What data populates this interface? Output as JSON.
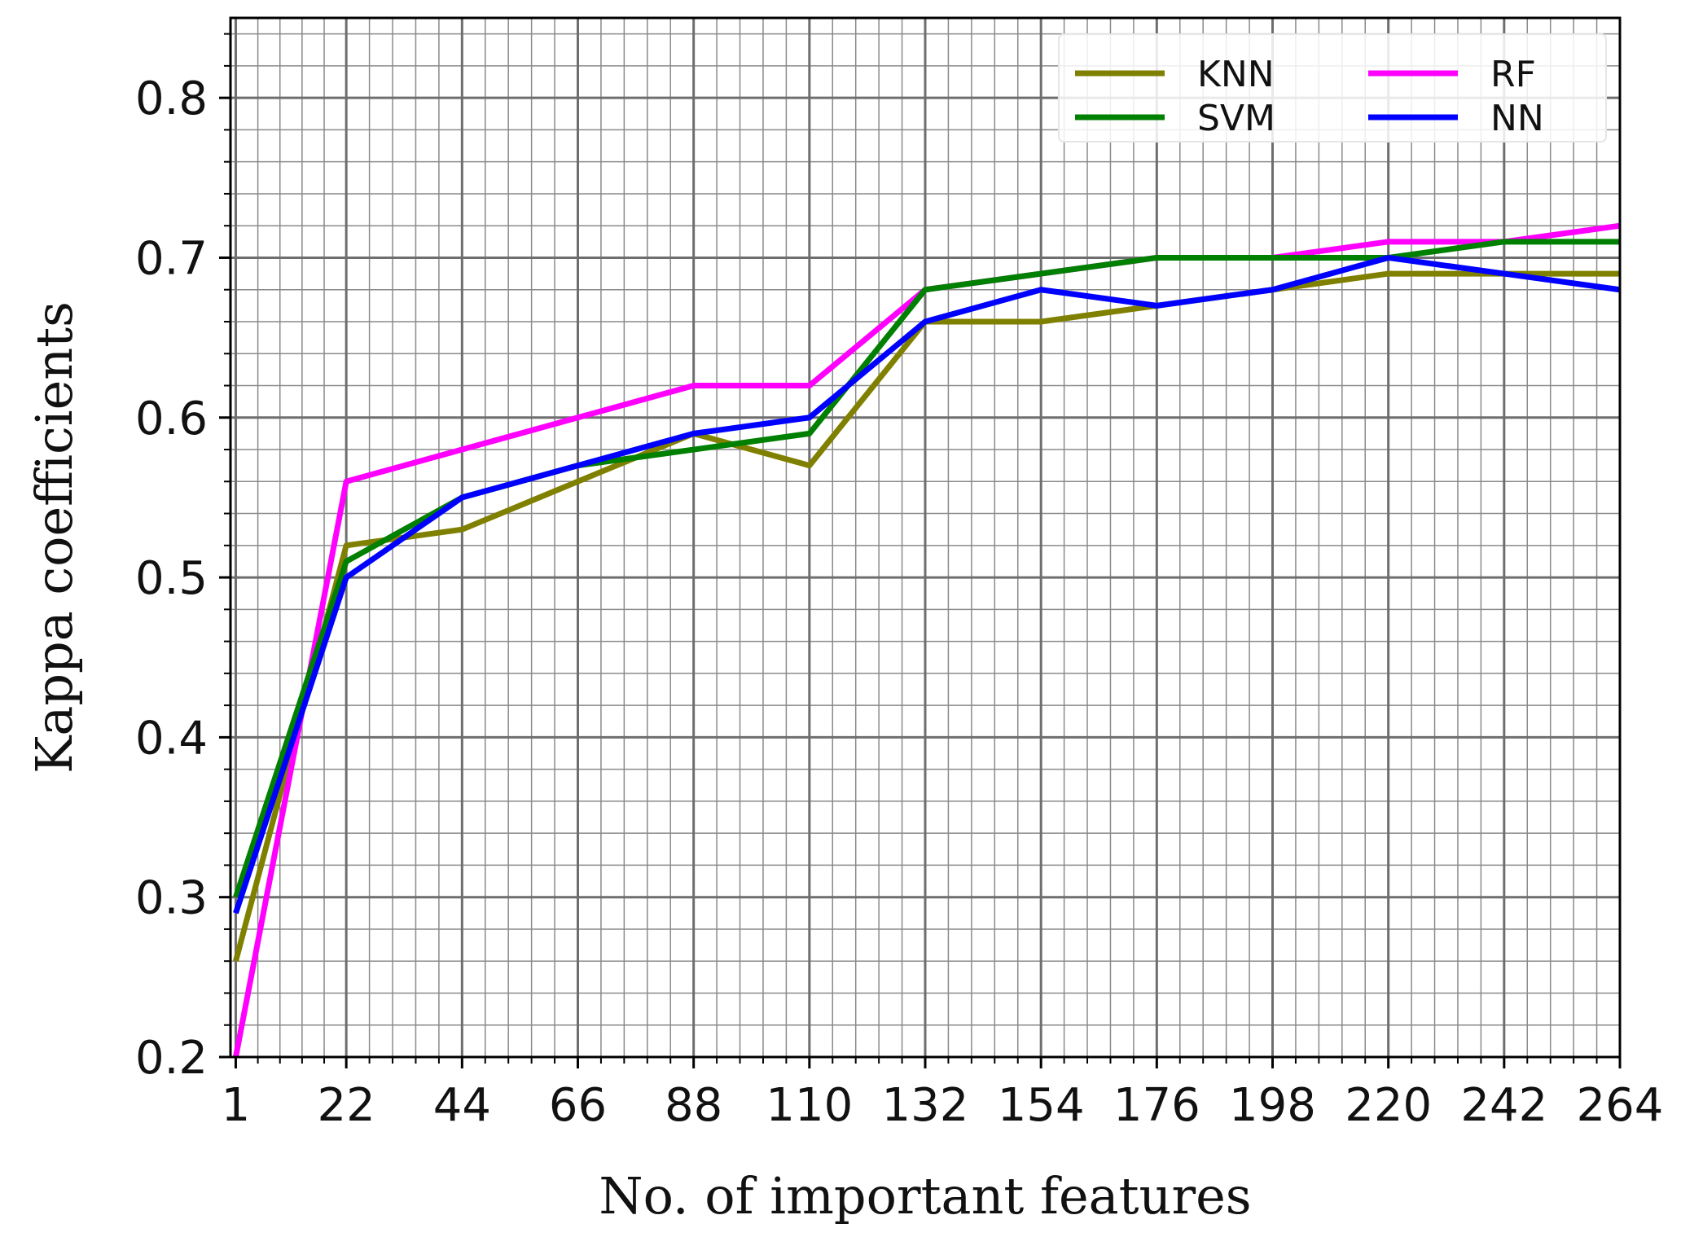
{
  "chart_data": {
    "type": "line",
    "x": [
      1,
      22,
      44,
      66,
      88,
      110,
      132,
      154,
      176,
      198,
      220,
      242,
      264
    ],
    "x_ticks": [
      "1",
      "22",
      "44",
      "66",
      "88",
      "110",
      "132",
      "154",
      "176",
      "198",
      "220",
      "242",
      "264"
    ],
    "y_ticks": [
      "0.2",
      "0.3",
      "0.4",
      "0.5",
      "0.6",
      "0.7",
      "0.8"
    ],
    "xlim": [
      0,
      264
    ],
    "ylim": [
      0.2,
      0.85
    ],
    "xlabel": "No. of important features",
    "ylabel": "Kappa coefficients",
    "grid": true,
    "legend_position": "top-right",
    "series": [
      {
        "name": "KNN",
        "color": "#808000",
        "values": [
          0.26,
          0.52,
          0.53,
          0.56,
          0.59,
          0.57,
          0.66,
          0.66,
          0.67,
          0.68,
          0.69,
          0.69,
          0.69
        ]
      },
      {
        "name": "RF",
        "color": "#ff00ff",
        "values": [
          0.2,
          0.56,
          0.58,
          0.6,
          0.62,
          0.62,
          0.68,
          0.69,
          0.7,
          0.7,
          0.71,
          0.71,
          0.72
        ]
      },
      {
        "name": "SVM",
        "color": "#008000",
        "values": [
          0.3,
          0.51,
          0.55,
          0.57,
          0.58,
          0.59,
          0.68,
          0.69,
          0.7,
          0.7,
          0.7,
          0.71,
          0.71
        ]
      },
      {
        "name": "NN",
        "color": "#0000ff",
        "values": [
          0.29,
          0.5,
          0.55,
          0.57,
          0.59,
          0.6,
          0.66,
          0.68,
          0.67,
          0.68,
          0.7,
          0.69,
          0.68
        ]
      }
    ]
  }
}
